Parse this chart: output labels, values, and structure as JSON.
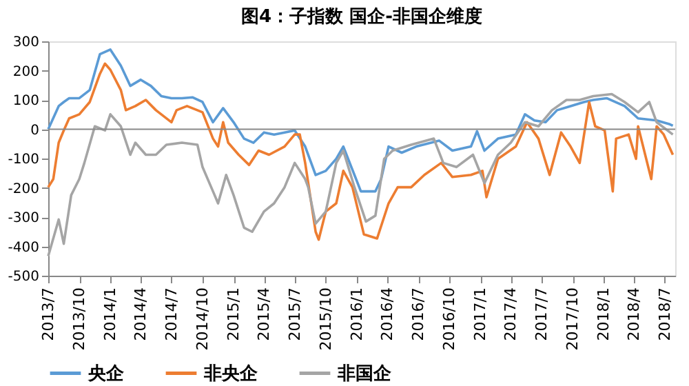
{
  "chart_data": {
    "type": "line",
    "title": "图4：子指数 国企-非国企维度",
    "ylim": [
      -500,
      300
    ],
    "yticks": [
      -500,
      -400,
      -300,
      -200,
      -100,
      0,
      100,
      200,
      300
    ],
    "xlim": [
      "2013-07-01",
      "2018-08-01"
    ],
    "xticks": [
      {
        "value": "2013-07-01",
        "label": "2013/7"
      },
      {
        "value": "2013-10-01",
        "label": "2013/10"
      },
      {
        "value": "2014-01-01",
        "label": "2014/1"
      },
      {
        "value": "2014-04-01",
        "label": "2014/4"
      },
      {
        "value": "2014-07-01",
        "label": "2014/7"
      },
      {
        "value": "2014-10-01",
        "label": "2014/10"
      },
      {
        "value": "2015-01-01",
        "label": "2015/1"
      },
      {
        "value": "2015-04-01",
        "label": "2015/4"
      },
      {
        "value": "2015-07-01",
        "label": "2015/7"
      },
      {
        "value": "2015-10-01",
        "label": "2015/10"
      },
      {
        "value": "2016-01-01",
        "label": "2016/1"
      },
      {
        "value": "2016-04-01",
        "label": "2016/4"
      },
      {
        "value": "2016-07-01",
        "label": "2016/7"
      },
      {
        "value": "2016-10-01",
        "label": "2016/10"
      },
      {
        "value": "2017-01-01",
        "label": "2017/1"
      },
      {
        "value": "2017-04-01",
        "label": "2017/4"
      },
      {
        "value": "2017-07-01",
        "label": "2017/7"
      },
      {
        "value": "2017-10-01",
        "label": "2017/10"
      },
      {
        "value": "2018-01-01",
        "label": "2018/1"
      },
      {
        "value": "2018-04-01",
        "label": "2018/4"
      },
      {
        "value": "2018-07-01",
        "label": "2018/7"
      }
    ],
    "ref_lines": [
      {
        "axis": "y",
        "value": 0,
        "color": "#888888"
      }
    ],
    "grid": false,
    "legend": "bottom",
    "marker": "none",
    "line_style": "solid",
    "series": [
      {
        "name": "央企",
        "color": "#5b9bd5",
        "x": [
          "2013-07-01",
          "2013-08-01",
          "2013-08-16",
          "2013-09-01",
          "2013-10-01",
          "2013-11-01",
          "2013-12-01",
          "2014-01-01",
          "2014-02-01",
          "2014-03-01",
          "2014-04-01",
          "2014-05-01",
          "2014-06-01",
          "2014-07-01",
          "2014-08-01",
          "2014-09-01",
          "2014-10-01",
          "2014-11-01",
          "2014-12-01",
          "2015-01-01",
          "2015-02-01",
          "2015-03-01",
          "2015-04-01",
          "2015-05-01",
          "2015-06-01",
          "2015-07-01",
          "2015-08-01",
          "2015-09-01",
          "2015-10-01",
          "2015-11-01",
          "2015-11-22",
          "2016-01-13",
          "2016-02-25",
          "2016-03-13",
          "2016-04-04",
          "2016-05-13",
          "2016-06-25",
          "2016-09-01",
          "2016-10-10",
          "2016-12-04",
          "2016-12-22",
          "2017-01-13",
          "2017-02-22",
          "2017-04-16",
          "2017-05-13",
          "2017-06-10",
          "2017-07-13",
          "2017-08-16",
          "2017-09-25",
          "2017-11-04",
          "2017-12-01",
          "2018-01-10",
          "2018-03-04",
          "2018-04-13",
          "2018-06-07",
          "2018-07-16",
          "2018-07-25"
        ],
        "values": [
          0,
          79,
          93,
          106,
          106,
          134,
          256,
          272,
          217,
          148,
          169,
          148,
          113,
          106,
          106,
          109,
          93,
          24,
          72,
          24,
          -32,
          -46,
          -11,
          -18,
          -11,
          -4,
          -59,
          -156,
          -142,
          -101,
          -59,
          -212,
          -212,
          -170,
          -59,
          -80,
          -59,
          -39,
          -73,
          -59,
          -7,
          -73,
          -32,
          -18,
          51,
          30,
          24,
          65,
          79,
          93,
          100,
          106,
          79,
          37,
          30,
          17,
          12
        ]
      },
      {
        "name": "非央企",
        "color": "#ed7d31",
        "x": [
          "2013-07-01",
          "2013-07-16",
          "2013-08-01",
          "2013-08-16",
          "2013-09-01",
          "2013-10-01",
          "2013-11-01",
          "2013-12-01",
          "2013-12-16",
          "2014-01-01",
          "2014-02-01",
          "2014-02-16",
          "2014-03-16",
          "2014-04-16",
          "2014-05-16",
          "2014-07-01",
          "2014-07-16",
          "2014-08-16",
          "2014-10-01",
          "2014-11-01",
          "2014-11-16",
          "2014-12-01",
          "2014-12-16",
          "2015-01-16",
          "2015-02-16",
          "2015-03-16",
          "2015-04-16",
          "2015-06-01",
          "2015-07-01",
          "2015-07-16",
          "2015-08-01",
          "2015-09-01",
          "2015-09-10",
          "2015-10-01",
          "2015-11-01",
          "2015-11-22",
          "2015-12-19",
          "2016-01-22",
          "2016-03-01",
          "2016-04-04",
          "2016-05-01",
          "2016-06-10",
          "2016-07-19",
          "2016-09-07",
          "2016-10-10",
          "2016-12-04",
          "2017-01-07",
          "2017-01-19",
          "2017-02-22",
          "2017-04-16",
          "2017-05-19",
          "2017-06-22",
          "2017-07-25",
          "2017-08-28",
          "2017-09-25",
          "2017-10-22",
          "2017-11-19",
          "2017-12-07",
          "2018-01-04",
          "2018-01-28",
          "2018-02-07",
          "2018-03-16",
          "2018-04-07",
          "2018-04-13",
          "2018-05-22",
          "2018-06-07",
          "2018-06-28",
          "2018-07-25"
        ],
        "values": [
          -198,
          -170,
          -46,
          -4,
          37,
          51,
          93,
          189,
          224,
          203,
          134,
          65,
          79,
          100,
          65,
          24,
          65,
          79,
          58,
          -32,
          -59,
          24,
          -46,
          -87,
          -122,
          -73,
          -87,
          -59,
          -18,
          -18,
          -115,
          -350,
          -377,
          -281,
          -253,
          -142,
          -198,
          -359,
          -373,
          -253,
          -198,
          -198,
          -156,
          -115,
          -163,
          -156,
          -142,
          -232,
          -101,
          -59,
          24,
          -32,
          -156,
          -11,
          -59,
          -115,
          93,
          10,
          -4,
          -212,
          -32,
          -18,
          -101,
          10,
          -170,
          10,
          -18,
          -87
        ]
      },
      {
        "name": "非国企",
        "color": "#a5a5a5",
        "x": [
          "2013-07-01",
          "2013-08-01",
          "2013-08-16",
          "2013-09-07",
          "2013-10-01",
          "2013-10-16",
          "2013-11-16",
          "2013-12-16",
          "2014-01-01",
          "2014-02-01",
          "2014-03-01",
          "2014-03-16",
          "2014-04-16",
          "2014-05-16",
          "2014-06-16",
          "2014-08-01",
          "2014-09-16",
          "2014-10-01",
          "2014-11-01",
          "2014-11-16",
          "2014-12-10",
          "2015-01-01",
          "2015-02-01",
          "2015-02-25",
          "2015-04-01",
          "2015-05-01",
          "2015-06-01",
          "2015-07-01",
          "2015-08-01",
          "2015-08-10",
          "2015-09-01",
          "2015-10-01",
          "2015-11-01",
          "2015-11-22",
          "2015-12-25",
          "2016-01-28",
          "2016-02-25",
          "2016-03-22",
          "2016-04-16",
          "2016-06-10",
          "2016-08-16",
          "2016-09-13",
          "2016-10-22",
          "2016-12-10",
          "2017-01-13",
          "2017-02-22",
          "2017-04-01",
          "2017-05-13",
          "2017-06-22",
          "2017-08-01",
          "2017-09-13",
          "2017-10-22",
          "2017-12-01",
          "2018-01-25",
          "2018-03-04",
          "2018-04-13",
          "2018-05-16",
          "2018-06-07",
          "2018-07-25"
        ],
        "values": [
          -433,
          -308,
          -391,
          -225,
          -170,
          -115,
          10,
          -4,
          51,
          10,
          -87,
          -46,
          -87,
          -87,
          -53,
          -46,
          -53,
          -129,
          -212,
          -253,
          -156,
          -225,
          -336,
          -350,
          -281,
          -253,
          -198,
          -115,
          -170,
          -198,
          -322,
          -281,
          -115,
          -73,
          -198,
          -315,
          -295,
          -101,
          -73,
          -53,
          -32,
          -115,
          -129,
          -87,
          -184,
          -87,
          -46,
          24,
          10,
          65,
          100,
          100,
          113,
          120,
          93,
          58,
          93,
          24,
          -18
        ]
      }
    ]
  }
}
